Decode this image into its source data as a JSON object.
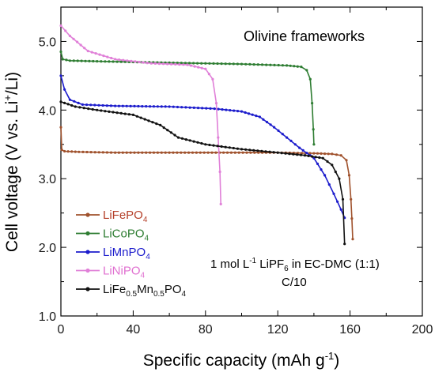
{
  "chart_data": {
    "type": "line",
    "xlabel": "Specific capacity (mAh g-1)",
    "ylabel": "Cell voltage (V vs. Li+/Li)",
    "xlim": [
      0,
      200
    ],
    "ylim": [
      1.0,
      5.5
    ],
    "xticks": [
      0,
      40,
      80,
      120,
      160,
      200
    ],
    "yticks": [
      1.0,
      2.0,
      3.0,
      4.0,
      5.0
    ],
    "legend_position": "bottom-left",
    "annotations": {
      "title": "Olivine frameworks",
      "electrolyte": "1 mol L-1 LiPF6 in EC-DMC (1:1)",
      "rate": "C/10"
    },
    "series": [
      {
        "name": "LiFePO4",
        "color": "#a0522d",
        "points": [
          [
            0,
            3.75
          ],
          [
            0.5,
            3.42
          ],
          [
            2,
            3.4
          ],
          [
            10,
            3.39
          ],
          [
            30,
            3.38
          ],
          [
            60,
            3.38
          ],
          [
            90,
            3.38
          ],
          [
            120,
            3.38
          ],
          [
            140,
            3.37
          ],
          [
            150,
            3.36
          ],
          [
            155,
            3.34
          ],
          [
            158,
            3.27
          ],
          [
            159.5,
            3.05
          ],
          [
            160.5,
            2.7
          ],
          [
            161,
            2.42
          ],
          [
            161.5,
            2.12
          ]
        ]
      },
      {
        "name": "LiCoPO4",
        "color": "#2e7d32",
        "points": [
          [
            0,
            4.85
          ],
          [
            1,
            4.74
          ],
          [
            5,
            4.72
          ],
          [
            20,
            4.71
          ],
          [
            60,
            4.69
          ],
          [
            100,
            4.67
          ],
          [
            125,
            4.65
          ],
          [
            133,
            4.63
          ],
          [
            136,
            4.58
          ],
          [
            138,
            4.45
          ],
          [
            139,
            4.1
          ],
          [
            139.7,
            3.72
          ],
          [
            140,
            3.5
          ]
        ]
      },
      {
        "name": "LiMnPO4",
        "color": "#1c1ccc",
        "points": [
          [
            0,
            4.5
          ],
          [
            2,
            4.3
          ],
          [
            5,
            4.15
          ],
          [
            12,
            4.08
          ],
          [
            30,
            4.06
          ],
          [
            60,
            4.05
          ],
          [
            85,
            4.02
          ],
          [
            100,
            3.98
          ],
          [
            110,
            3.9
          ],
          [
            118,
            3.75
          ],
          [
            125,
            3.6
          ],
          [
            132,
            3.45
          ],
          [
            140,
            3.3
          ],
          [
            146,
            3.05
          ],
          [
            151,
            2.78
          ],
          [
            155,
            2.55
          ],
          [
            157,
            2.43
          ]
        ]
      },
      {
        "name": "LiNiPO4",
        "color": "#e080d8",
        "points": [
          [
            0,
            5.23
          ],
          [
            5,
            5.08
          ],
          [
            15,
            4.86
          ],
          [
            30,
            4.74
          ],
          [
            50,
            4.68
          ],
          [
            70,
            4.66
          ],
          [
            80,
            4.6
          ],
          [
            84,
            4.45
          ],
          [
            86,
            4.1
          ],
          [
            87,
            3.6
          ],
          [
            88,
            3.1
          ],
          [
            88.5,
            2.63
          ]
        ]
      },
      {
        "name": "LiFe0.5Mn0.5PO4",
        "color": "#111111",
        "points": [
          [
            0,
            4.12
          ],
          [
            8,
            4.05
          ],
          [
            20,
            4.0
          ],
          [
            40,
            3.93
          ],
          [
            55,
            3.78
          ],
          [
            65,
            3.6
          ],
          [
            80,
            3.5
          ],
          [
            100,
            3.43
          ],
          [
            120,
            3.38
          ],
          [
            135,
            3.34
          ],
          [
            145,
            3.3
          ],
          [
            150,
            3.2
          ],
          [
            154,
            3.0
          ],
          [
            156,
            2.7
          ],
          [
            157,
            2.05
          ]
        ]
      }
    ]
  },
  "legend": {
    "items": [
      {
        "base": "LiFePO",
        "sub1": "",
        "mid": "",
        "sub2": "4",
        "color": "#a0522d",
        "textColor": "#b5402a"
      },
      {
        "base": "LiCoPO",
        "sub1": "",
        "mid": "",
        "sub2": "4",
        "color": "#2e7d32",
        "textColor": "#2e7d32"
      },
      {
        "base": "LiMnPO",
        "sub1": "",
        "mid": "",
        "sub2": "4",
        "color": "#1c1ccc",
        "textColor": "#1c1ccc"
      },
      {
        "base": "LiNiPO",
        "sub1": "",
        "mid": "",
        "sub2": "4",
        "color": "#e080d8",
        "textColor": "#e070d0"
      },
      {
        "base": "LiFe",
        "sub1": "0.5",
        "mid": "Mn",
        "sub1b": "0.5",
        "mid2": "PO",
        "sub2": "4",
        "color": "#111111",
        "textColor": "#111111"
      }
    ]
  }
}
